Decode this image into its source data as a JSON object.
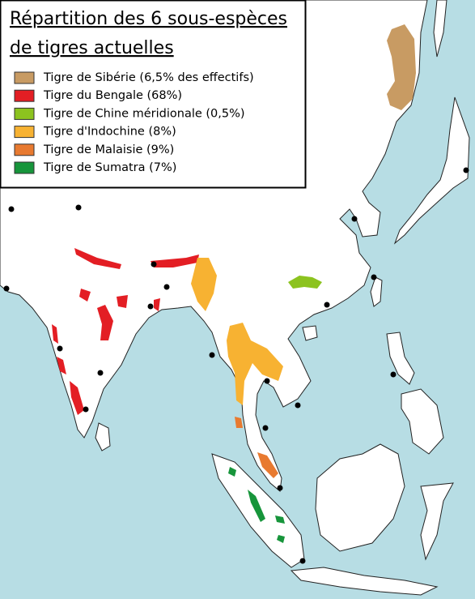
{
  "title": [
    "Répartition des 6 sous-espèces",
    "de tigres actuelles"
  ],
  "legend": [
    {
      "label": "Tigre de Sibérie (6,5% des effectifs)",
      "color": "#c89b63"
    },
    {
      "label": "Tigre du Bengale (68%)",
      "color": "#e31e24"
    },
    {
      "label": "Tigre de Chine méridionale (0,5%)",
      "color": "#8cc31f"
    },
    {
      "label": "Tigre d'Indochine (8%)",
      "color": "#f7b232"
    },
    {
      "label": "Tigre de Malaisie (9%)",
      "color": "#e87a30"
    },
    {
      "label": "Tigre de Sumatra (7%)",
      "color": "#17953b"
    }
  ]
}
